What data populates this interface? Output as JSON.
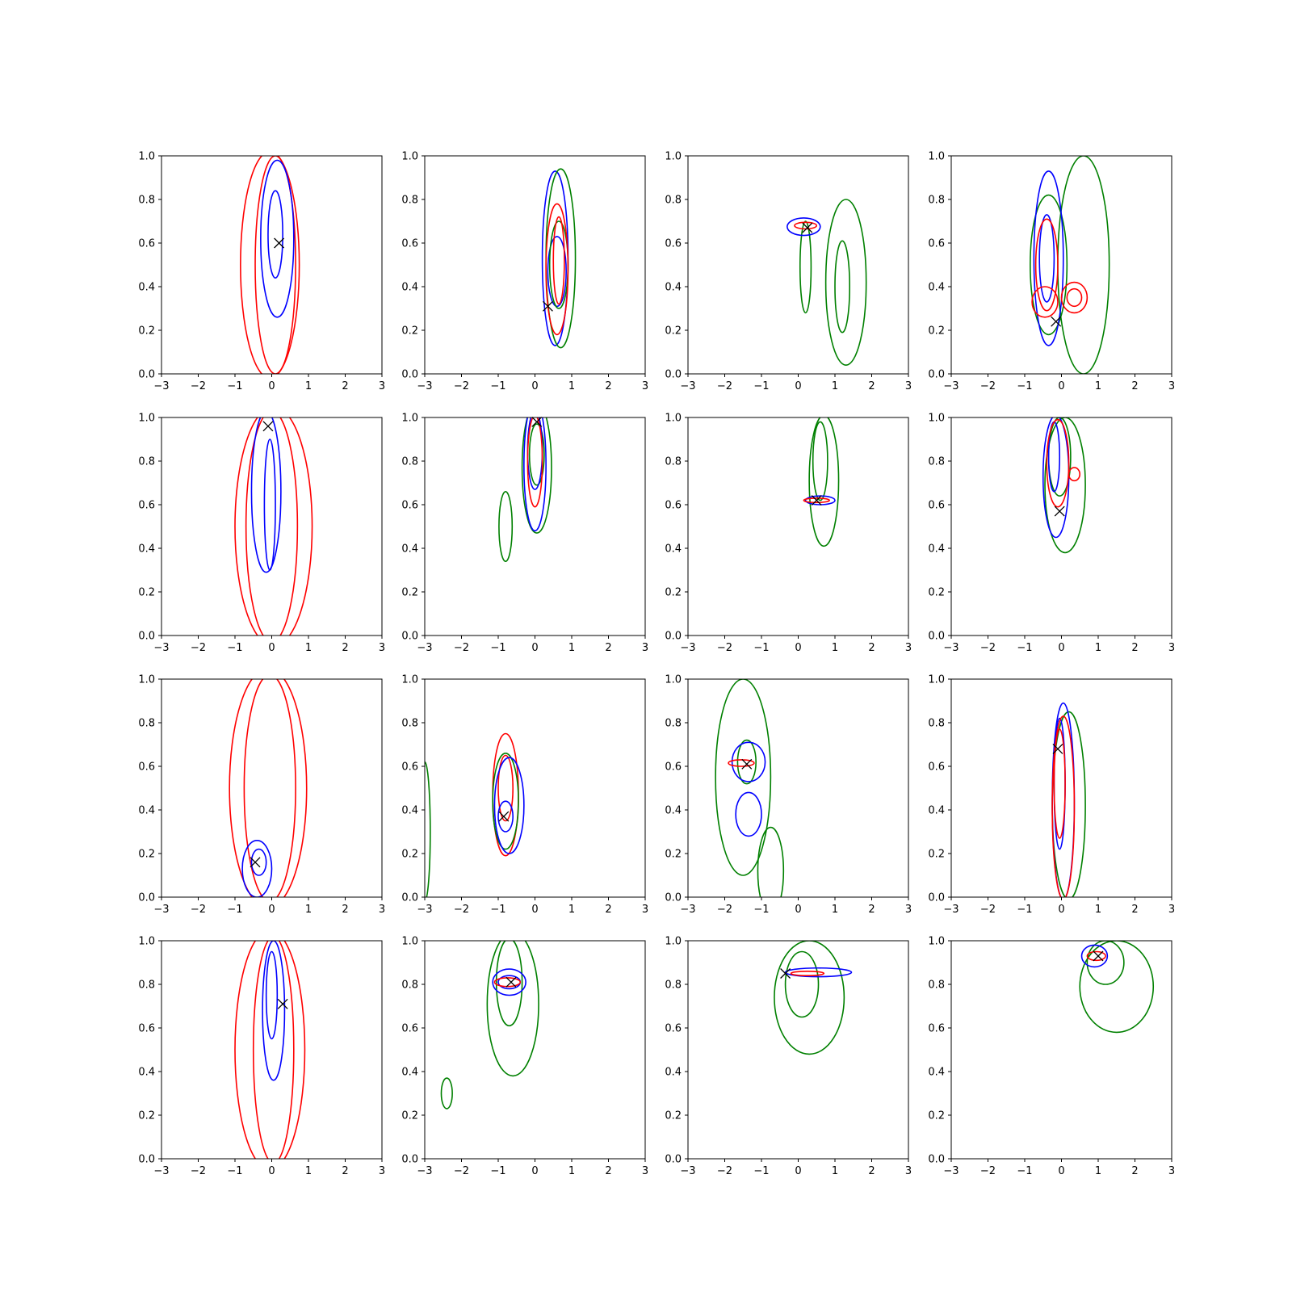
{
  "figure": {
    "rows": 4,
    "cols": 4,
    "colors": {
      "blue": "#0000ff",
      "red": "#ff0000",
      "green": "#008000",
      "marker": "#000000"
    }
  },
  "chart_data": [
    {
      "type": "contour",
      "xlim": [
        -3,
        3
      ],
      "ylim": [
        0,
        1
      ],
      "xticks": [
        -3,
        -2,
        -1,
        0,
        1,
        2,
        3
      ],
      "yticks": [
        0.0,
        0.2,
        0.4,
        0.6,
        0.8,
        1.0
      ],
      "marker": [
        0.2,
        0.6
      ],
      "contours": [
        {
          "color": "red",
          "cx": -0.05,
          "cy": 0.5,
          "rx": 0.8,
          "ry": 0.52
        },
        {
          "color": "red",
          "cx": 0.1,
          "cy": 0.5,
          "rx": 0.55,
          "ry": 0.5
        },
        {
          "color": "blue",
          "cx": 0.15,
          "cy": 0.62,
          "rx": 0.45,
          "ry": 0.36
        },
        {
          "color": "blue",
          "cx": 0.1,
          "cy": 0.64,
          "rx": 0.2,
          "ry": 0.2
        }
      ]
    },
    {
      "type": "contour",
      "xlim": [
        -3,
        3
      ],
      "ylim": [
        0,
        1
      ],
      "xticks": [
        -3,
        -2,
        -1,
        0,
        1,
        2,
        3
      ],
      "yticks": [
        0.0,
        0.2,
        0.4,
        0.6,
        0.8,
        1.0
      ],
      "marker": [
        0.35,
        0.31
      ],
      "contours": [
        {
          "color": "blue",
          "cx": 0.55,
          "cy": 0.53,
          "rx": 0.35,
          "ry": 0.4
        },
        {
          "color": "blue",
          "cx": 0.6,
          "cy": 0.47,
          "rx": 0.25,
          "ry": 0.16
        },
        {
          "color": "green",
          "cx": 0.7,
          "cy": 0.53,
          "rx": 0.4,
          "ry": 0.41
        },
        {
          "color": "green",
          "cx": 0.65,
          "cy": 0.5,
          "rx": 0.25,
          "ry": 0.2
        },
        {
          "color": "red",
          "cx": 0.6,
          "cy": 0.48,
          "rx": 0.3,
          "ry": 0.3
        },
        {
          "color": "red",
          "cx": 0.65,
          "cy": 0.52,
          "rx": 0.15,
          "ry": 0.2
        }
      ]
    },
    {
      "type": "contour",
      "xlim": [
        -3,
        3
      ],
      "ylim": [
        0,
        1
      ],
      "xticks": [
        -3,
        -2,
        -1,
        0,
        1,
        2,
        3
      ],
      "yticks": [
        0.0,
        0.2,
        0.4,
        0.6,
        0.8,
        1.0
      ],
      "marker": [
        0.25,
        0.67
      ],
      "contours": [
        {
          "color": "green",
          "cx": 1.3,
          "cy": 0.42,
          "rx": 0.55,
          "ry": 0.38
        },
        {
          "color": "green",
          "cx": 1.2,
          "cy": 0.4,
          "rx": 0.2,
          "ry": 0.21
        },
        {
          "color": "green",
          "cx": 0.2,
          "cy": 0.49,
          "rx": 0.15,
          "ry": 0.21
        },
        {
          "color": "blue",
          "cx": 0.15,
          "cy": 0.675,
          "rx": 0.45,
          "ry": 0.04
        },
        {
          "color": "red",
          "cx": 0.2,
          "cy": 0.68,
          "rx": 0.3,
          "ry": 0.015
        }
      ]
    },
    {
      "type": "contour",
      "xlim": [
        -3,
        3
      ],
      "ylim": [
        0,
        1
      ],
      "xticks": [
        -3,
        -2,
        -1,
        0,
        1,
        2,
        3
      ],
      "yticks": [
        0.0,
        0.2,
        0.4,
        0.6,
        0.8,
        1.0
      ],
      "marker": [
        -0.15,
        0.24
      ],
      "contours": [
        {
          "color": "green",
          "cx": 0.6,
          "cy": 0.5,
          "rx": 0.7,
          "ry": 0.5
        },
        {
          "color": "green",
          "cx": -0.35,
          "cy": 0.5,
          "rx": 0.5,
          "ry": 0.32
        },
        {
          "color": "blue",
          "cx": -0.35,
          "cy": 0.53,
          "rx": 0.4,
          "ry": 0.4
        },
        {
          "color": "blue",
          "cx": -0.4,
          "cy": 0.53,
          "rx": 0.2,
          "ry": 0.2
        },
        {
          "color": "red",
          "cx": -0.4,
          "cy": 0.5,
          "rx": 0.3,
          "ry": 0.21
        },
        {
          "color": "red",
          "cx": -0.45,
          "cy": 0.33,
          "rx": 0.35,
          "ry": 0.07
        },
        {
          "color": "red",
          "cx": 0.35,
          "cy": 0.35,
          "rx": 0.35,
          "ry": 0.07
        },
        {
          "color": "red",
          "cx": 0.35,
          "cy": 0.35,
          "rx": 0.2,
          "ry": 0.04
        }
      ]
    },
    {
      "type": "contour",
      "xlim": [
        -3,
        3
      ],
      "ylim": [
        0,
        1
      ],
      "xticks": [
        -3,
        -2,
        -1,
        0,
        1,
        2,
        3
      ],
      "yticks": [
        0.0,
        0.2,
        0.4,
        0.6,
        0.8,
        1.0
      ],
      "marker": [
        -0.1,
        0.96
      ],
      "contours": [
        {
          "color": "red",
          "cx": 0.05,
          "cy": 0.5,
          "rx": 1.05,
          "ry": 0.55
        },
        {
          "color": "red",
          "cx": 0.0,
          "cy": 0.5,
          "rx": 0.7,
          "ry": 0.53
        },
        {
          "color": "blue",
          "cx": -0.15,
          "cy": 0.66,
          "rx": 0.4,
          "ry": 0.37
        },
        {
          "color": "blue",
          "cx": -0.05,
          "cy": 0.6,
          "rx": 0.15,
          "ry": 0.3
        }
      ]
    },
    {
      "type": "contour",
      "xlim": [
        -3,
        3
      ],
      "ylim": [
        0,
        1
      ],
      "xticks": [
        -3,
        -2,
        -1,
        0,
        1,
        2,
        3
      ],
      "yticks": [
        0.0,
        0.2,
        0.4,
        0.6,
        0.8,
        1.0
      ],
      "marker": [
        0.05,
        0.98
      ],
      "contours": [
        {
          "color": "green",
          "cx": 0.05,
          "cy": 0.77,
          "rx": 0.4,
          "ry": 0.3
        },
        {
          "color": "green",
          "cx": 0.05,
          "cy": 0.83,
          "rx": 0.2,
          "ry": 0.14
        },
        {
          "color": "green",
          "cx": -0.8,
          "cy": 0.5,
          "rx": 0.18,
          "ry": 0.16
        },
        {
          "color": "blue",
          "cx": 0.0,
          "cy": 0.78,
          "rx": 0.3,
          "ry": 0.3
        },
        {
          "color": "blue",
          "cx": 0.0,
          "cy": 0.85,
          "rx": 0.2,
          "ry": 0.18
        },
        {
          "color": "red",
          "cx": 0.0,
          "cy": 0.8,
          "rx": 0.2,
          "ry": 0.21
        }
      ]
    },
    {
      "type": "contour",
      "xlim": [
        -3,
        3
      ],
      "ylim": [
        0,
        1
      ],
      "xticks": [
        -3,
        -2,
        -1,
        0,
        1,
        2,
        3
      ],
      "yticks": [
        0.0,
        0.2,
        0.4,
        0.6,
        0.8,
        1.0
      ],
      "marker": [
        0.5,
        0.62
      ],
      "contours": [
        {
          "color": "green",
          "cx": 0.7,
          "cy": 0.71,
          "rx": 0.4,
          "ry": 0.3
        },
        {
          "color": "green",
          "cx": 0.6,
          "cy": 0.8,
          "rx": 0.2,
          "ry": 0.18
        },
        {
          "color": "blue",
          "cx": 0.6,
          "cy": 0.62,
          "rx": 0.4,
          "ry": 0.02
        },
        {
          "color": "red",
          "cx": 0.5,
          "cy": 0.62,
          "rx": 0.35,
          "ry": 0.01
        }
      ]
    },
    {
      "type": "contour",
      "xlim": [
        -3,
        3
      ],
      "ylim": [
        0,
        1
      ],
      "xticks": [
        -3,
        -2,
        -1,
        0,
        1,
        2,
        3
      ],
      "yticks": [
        0.0,
        0.2,
        0.4,
        0.6,
        0.8,
        1.0
      ],
      "marker": [
        -0.05,
        0.57
      ],
      "contours": [
        {
          "color": "green",
          "cx": 0.1,
          "cy": 0.69,
          "rx": 0.55,
          "ry": 0.31
        },
        {
          "color": "green",
          "cx": -0.05,
          "cy": 0.82,
          "rx": 0.3,
          "ry": 0.18
        },
        {
          "color": "blue",
          "cx": -0.15,
          "cy": 0.73,
          "rx": 0.35,
          "ry": 0.28
        },
        {
          "color": "blue",
          "cx": -0.2,
          "cy": 0.82,
          "rx": 0.15,
          "ry": 0.16
        },
        {
          "color": "red",
          "cx": -0.1,
          "cy": 0.79,
          "rx": 0.3,
          "ry": 0.2
        },
        {
          "color": "red",
          "cx": 0.35,
          "cy": 0.74,
          "rx": 0.15,
          "ry": 0.03
        }
      ]
    },
    {
      "type": "contour",
      "xlim": [
        -3,
        3
      ],
      "ylim": [
        0,
        1
      ],
      "xticks": [
        -3,
        -2,
        -1,
        0,
        1,
        2,
        3
      ],
      "yticks": [
        0.0,
        0.2,
        0.4,
        0.6,
        0.8,
        1.0
      ],
      "marker": [
        -0.45,
        0.16
      ],
      "contours": [
        {
          "color": "red",
          "cx": -0.1,
          "cy": 0.5,
          "rx": 1.05,
          "ry": 0.55
        },
        {
          "color": "red",
          "cx": -0.05,
          "cy": 0.5,
          "rx": 0.7,
          "ry": 0.52
        },
        {
          "color": "blue",
          "cx": -0.4,
          "cy": 0.13,
          "rx": 0.4,
          "ry": 0.13
        },
        {
          "color": "blue",
          "cx": -0.35,
          "cy": 0.16,
          "rx": 0.2,
          "ry": 0.06
        }
      ]
    },
    {
      "type": "contour",
      "xlim": [
        -3,
        3
      ],
      "ylim": [
        0,
        1
      ],
      "xticks": [
        -3,
        -2,
        -1,
        0,
        1,
        2,
        3
      ],
      "yticks": [
        0.0,
        0.2,
        0.4,
        0.6,
        0.8,
        1.0
      ],
      "marker": [
        -0.85,
        0.37
      ],
      "contours": [
        {
          "color": "green",
          "cx": -3.0,
          "cy": 0.3,
          "rx": 0.15,
          "ry": 0.32
        },
        {
          "color": "red",
          "cx": -0.8,
          "cy": 0.47,
          "rx": 0.35,
          "ry": 0.28
        },
        {
          "color": "red",
          "cx": -0.8,
          "cy": 0.5,
          "rx": 0.2,
          "ry": 0.15
        },
        {
          "color": "green",
          "cx": -0.8,
          "cy": 0.44,
          "rx": 0.35,
          "ry": 0.22
        },
        {
          "color": "blue",
          "cx": -0.7,
          "cy": 0.42,
          "rx": 0.4,
          "ry": 0.22
        },
        {
          "color": "blue",
          "cx": -0.8,
          "cy": 0.37,
          "rx": 0.2,
          "ry": 0.07
        }
      ]
    },
    {
      "type": "contour",
      "xlim": [
        -3,
        3
      ],
      "ylim": [
        0,
        1
      ],
      "xticks": [
        -3,
        -2,
        -1,
        0,
        1,
        2,
        3
      ],
      "yticks": [
        0.0,
        0.2,
        0.4,
        0.6,
        0.8,
        1.0
      ],
      "marker": [
        -1.4,
        0.61
      ],
      "contours": [
        {
          "color": "green",
          "cx": -1.5,
          "cy": 0.55,
          "rx": 0.75,
          "ry": 0.45
        },
        {
          "color": "green",
          "cx": -0.75,
          "cy": 0.12,
          "rx": 0.35,
          "ry": 0.2
        },
        {
          "color": "green",
          "cx": -1.4,
          "cy": 0.62,
          "rx": 0.25,
          "ry": 0.1
        },
        {
          "color": "blue",
          "cx": -1.35,
          "cy": 0.62,
          "rx": 0.45,
          "ry": 0.09
        },
        {
          "color": "blue",
          "cx": -1.35,
          "cy": 0.38,
          "rx": 0.35,
          "ry": 0.1
        },
        {
          "color": "red",
          "cx": -1.55,
          "cy": 0.615,
          "rx": 0.35,
          "ry": 0.015
        }
      ]
    },
    {
      "type": "contour",
      "xlim": [
        -3,
        3
      ],
      "ylim": [
        0,
        1
      ],
      "xticks": [
        -3,
        -2,
        -1,
        0,
        1,
        2,
        3
      ],
      "yticks": [
        0.0,
        0.2,
        0.4,
        0.6,
        0.8,
        1.0
      ],
      "marker": [
        -0.1,
        0.68
      ],
      "contours": [
        {
          "color": "green",
          "cx": 0.2,
          "cy": 0.42,
          "rx": 0.45,
          "ry": 0.43
        },
        {
          "color": "blue",
          "cx": 0.05,
          "cy": 0.44,
          "rx": 0.3,
          "ry": 0.45
        },
        {
          "color": "blue",
          "cx": -0.05,
          "cy": 0.52,
          "rx": 0.15,
          "ry": 0.3
        },
        {
          "color": "red",
          "cx": 0.05,
          "cy": 0.41,
          "rx": 0.3,
          "ry": 0.42
        },
        {
          "color": "red",
          "cx": -0.05,
          "cy": 0.52,
          "rx": 0.15,
          "ry": 0.25
        }
      ]
    },
    {
      "type": "contour",
      "xlim": [
        -3,
        3
      ],
      "ylim": [
        0,
        1
      ],
      "xticks": [
        -3,
        -2,
        -1,
        0,
        1,
        2,
        3
      ],
      "yticks": [
        0.0,
        0.2,
        0.4,
        0.6,
        0.8,
        1.0
      ],
      "marker": [
        0.3,
        0.71
      ],
      "contours": [
        {
          "color": "red",
          "cx": -0.05,
          "cy": 0.5,
          "rx": 0.95,
          "ry": 0.55
        },
        {
          "color": "red",
          "cx": 0.05,
          "cy": 0.5,
          "rx": 0.55,
          "ry": 0.52
        },
        {
          "color": "blue",
          "cx": 0.05,
          "cy": 0.68,
          "rx": 0.3,
          "ry": 0.32
        },
        {
          "color": "blue",
          "cx": 0.0,
          "cy": 0.75,
          "rx": 0.15,
          "ry": 0.2
        }
      ]
    },
    {
      "type": "contour",
      "xlim": [
        -3,
        3
      ],
      "ylim": [
        0,
        1
      ],
      "xticks": [
        -3,
        -2,
        -1,
        0,
        1,
        2,
        3
      ],
      "yticks": [
        0.0,
        0.2,
        0.4,
        0.6,
        0.8,
        1.0
      ],
      "marker": [
        -0.65,
        0.81
      ],
      "contours": [
        {
          "color": "green",
          "cx": -0.6,
          "cy": 0.71,
          "rx": 0.7,
          "ry": 0.33
        },
        {
          "color": "green",
          "cx": -0.7,
          "cy": 0.81,
          "rx": 0.35,
          "ry": 0.2
        },
        {
          "color": "green",
          "cx": -2.4,
          "cy": 0.3,
          "rx": 0.15,
          "ry": 0.07
        },
        {
          "color": "blue",
          "cx": -0.7,
          "cy": 0.81,
          "rx": 0.45,
          "ry": 0.06
        },
        {
          "color": "blue",
          "cx": -0.7,
          "cy": 0.81,
          "rx": 0.3,
          "ry": 0.03
        },
        {
          "color": "red",
          "cx": -0.75,
          "cy": 0.81,
          "rx": 0.35,
          "ry": 0.02
        }
      ]
    },
    {
      "type": "contour",
      "xlim": [
        -3,
        3
      ],
      "ylim": [
        0,
        1
      ],
      "xticks": [
        -3,
        -2,
        -1,
        0,
        1,
        2,
        3
      ],
      "yticks": [
        0.0,
        0.2,
        0.4,
        0.6,
        0.8,
        1.0
      ],
      "marker": [
        -0.35,
        0.85
      ],
      "contours": [
        {
          "color": "green",
          "cx": 0.3,
          "cy": 0.74,
          "rx": 0.95,
          "ry": 0.26
        },
        {
          "color": "green",
          "cx": 0.1,
          "cy": 0.8,
          "rx": 0.45,
          "ry": 0.15
        },
        {
          "color": "blue",
          "cx": 0.55,
          "cy": 0.855,
          "rx": 0.9,
          "ry": 0.02
        },
        {
          "color": "red",
          "cx": 0.25,
          "cy": 0.85,
          "rx": 0.45,
          "ry": 0.01
        }
      ]
    },
    {
      "type": "contour",
      "xlim": [
        -3,
        3
      ],
      "ylim": [
        0,
        1
      ],
      "xticks": [
        -3,
        -2,
        -1,
        0,
        1,
        2,
        3
      ],
      "yticks": [
        0.0,
        0.2,
        0.4,
        0.6,
        0.8,
        1.0
      ],
      "marker": [
        1.0,
        0.93
      ],
      "contours": [
        {
          "color": "green",
          "cx": 1.5,
          "cy": 0.79,
          "rx": 1.0,
          "ry": 0.21
        },
        {
          "color": "green",
          "cx": 1.2,
          "cy": 0.9,
          "rx": 0.5,
          "ry": 0.1
        },
        {
          "color": "blue",
          "cx": 0.9,
          "cy": 0.93,
          "rx": 0.35,
          "ry": 0.05
        },
        {
          "color": "red",
          "cx": 0.95,
          "cy": 0.93,
          "rx": 0.25,
          "ry": 0.02
        }
      ]
    }
  ]
}
